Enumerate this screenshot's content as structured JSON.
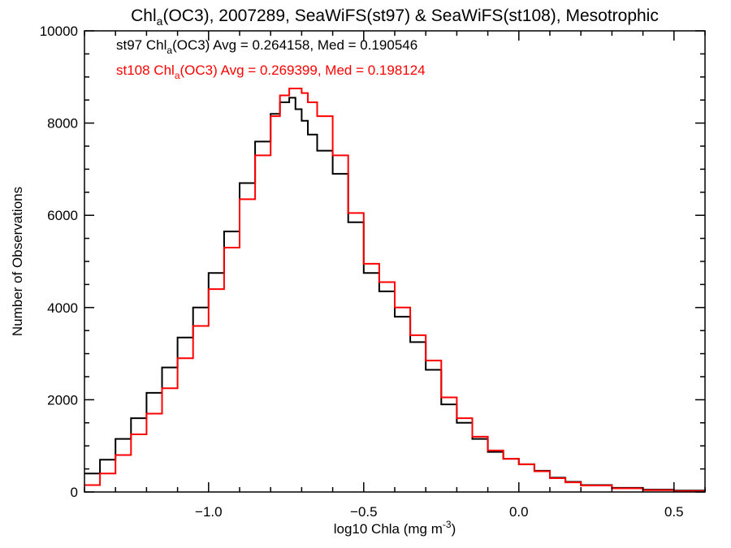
{
  "chart_data": {
    "type": "line",
    "title": {
      "part1": "Chl",
      "sub": "a",
      "part2": "(OC3), 2007289, SeaWiFS(st97) & SeaWiFS(st108), Mesotrophic"
    },
    "xlabel": {
      "main": "log10 Chla (mg m",
      "sup": "-3",
      "close": ")"
    },
    "ylabel": "Number of Observations",
    "xlim": [
      -1.4,
      0.6
    ],
    "ylim": [
      0,
      10000
    ],
    "x_ticks": [
      -1.0,
      -0.5,
      0.0,
      0.5
    ],
    "x_tick_labels": [
      "−1.0",
      "−0.5",
      "0.0",
      "0.5"
    ],
    "y_ticks": [
      0,
      2000,
      4000,
      6000,
      8000,
      10000
    ],
    "y_tick_labels": [
      "0",
      "2000",
      "4000",
      "6000",
      "8000",
      "10000"
    ],
    "grid": false,
    "legend_position": "top-left",
    "series": [
      {
        "name": "st97",
        "color": "#000000",
        "legend": {
          "pre": "st97 Chl",
          "sub": "a",
          "post": "(OC3) Avg = 0.264158, Med = 0.190546"
        },
        "x": [
          -1.4,
          -1.35,
          -1.3,
          -1.25,
          -1.2,
          -1.15,
          -1.1,
          -1.05,
          -1.0,
          -0.95,
          -0.9,
          -0.85,
          -0.8,
          -0.77,
          -0.74,
          -0.72,
          -0.7,
          -0.68,
          -0.65,
          -0.6,
          -0.55,
          -0.5,
          -0.45,
          -0.4,
          -0.35,
          -0.3,
          -0.25,
          -0.2,
          -0.15,
          -0.1,
          -0.05,
          0.0,
          0.05,
          0.1,
          0.15,
          0.2,
          0.3,
          0.4,
          0.5,
          0.6
        ],
        "values": [
          400,
          700,
          1150,
          1600,
          2150,
          2700,
          3350,
          4000,
          4750,
          5650,
          6700,
          7600,
          8200,
          8450,
          8550,
          8300,
          8050,
          7750,
          7400,
          6900,
          5850,
          4750,
          4350,
          3800,
          3250,
          2650,
          1900,
          1500,
          1150,
          870,
          720,
          600,
          460,
          310,
          220,
          150,
          90,
          50,
          30,
          20
        ]
      },
      {
        "name": "st108",
        "color": "#ff0000",
        "legend": {
          "pre": "st108 Chl",
          "sub": "a",
          "post": "(OC3) Avg = 0.269399, Med = 0.198124"
        },
        "x": [
          -1.4,
          -1.35,
          -1.3,
          -1.25,
          -1.2,
          -1.15,
          -1.1,
          -1.05,
          -1.0,
          -0.95,
          -0.9,
          -0.85,
          -0.8,
          -0.77,
          -0.74,
          -0.72,
          -0.7,
          -0.68,
          -0.65,
          -0.6,
          -0.55,
          -0.5,
          -0.45,
          -0.4,
          -0.35,
          -0.3,
          -0.25,
          -0.2,
          -0.15,
          -0.1,
          -0.05,
          0.0,
          0.05,
          0.1,
          0.15,
          0.2,
          0.3,
          0.4,
          0.5,
          0.6
        ],
        "values": [
          150,
          400,
          800,
          1250,
          1700,
          2250,
          2900,
          3600,
          4400,
          5300,
          6350,
          7300,
          8150,
          8600,
          8750,
          8750,
          8650,
          8450,
          8150,
          7300,
          6050,
          4950,
          4550,
          4000,
          3400,
          2850,
          2050,
          1600,
          1200,
          900,
          720,
          600,
          450,
          300,
          210,
          140,
          80,
          40,
          20,
          10
        ]
      }
    ]
  }
}
